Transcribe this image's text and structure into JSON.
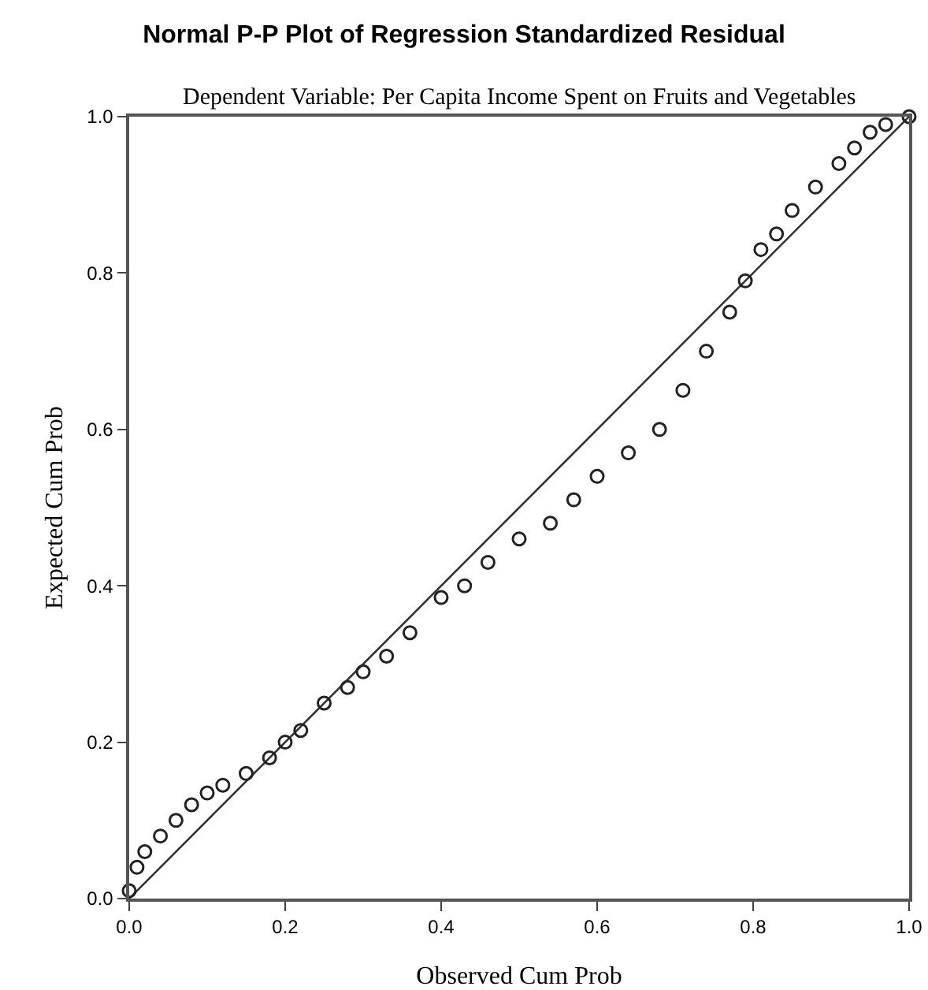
{
  "chart_data": {
    "type": "scatter",
    "title": "Normal P-P Plot of Regression Standardized Residual",
    "subtitle": "Dependent Variable: Per Capita Income Spent on Fruits and Vegetables",
    "xlabel": "Observed Cum Prob",
    "ylabel": "Expected Cum Prob",
    "x": [
      0,
      0.01,
      0.02,
      0.04,
      0.06,
      0.08,
      0.1,
      0.12,
      0.15,
      0.18,
      0.2,
      0.22,
      0.25,
      0.28,
      0.3,
      0.33,
      0.36,
      0.4,
      0.43,
      0.46,
      0.5,
      0.54,
      0.57,
      0.6,
      0.64,
      0.68,
      0.71,
      0.74,
      0.77,
      0.79,
      0.81,
      0.83,
      0.85,
      0.88,
      0.91,
      0.93,
      0.95,
      0.97,
      1.0
    ],
    "series": [
      {
        "color": "#222222",
        "values": [
          0.01,
          0.04,
          0.06,
          0.08,
          0.1,
          0.12,
          0.135,
          0.145,
          0.16,
          0.18,
          0.2,
          0.215,
          0.25,
          0.27,
          0.29,
          0.31,
          0.34,
          0.385,
          0.4,
          0.43,
          0.46,
          0.48,
          0.51,
          0.54,
          0.57,
          0.6,
          0.65,
          0.7,
          0.75,
          0.79,
          0.83,
          0.85,
          0.88,
          0.91,
          0.94,
          0.96,
          0.98,
          0.99,
          1.0
        ]
      },
      {
        "type": "line",
        "color": "#333333",
        "x": [
          0,
          1
        ],
        "values": [
          0,
          1
        ],
        "marker": "none"
      }
    ],
    "xlim": [
      0,
      1
    ],
    "ylim": [
      0,
      1
    ],
    "xticks": [
      {
        "value": 0,
        "label": "0.0"
      },
      0.2,
      0.4,
      0.6,
      0.8,
      {
        "value": 1,
        "label": "1.0"
      }
    ],
    "yticks": [
      {
        "value": 0,
        "label": "0.0"
      },
      0.2,
      0.4,
      0.6,
      0.8,
      {
        "value": 1,
        "label": "1.0"
      }
    ],
    "grid": false,
    "marker": "circle"
  }
}
